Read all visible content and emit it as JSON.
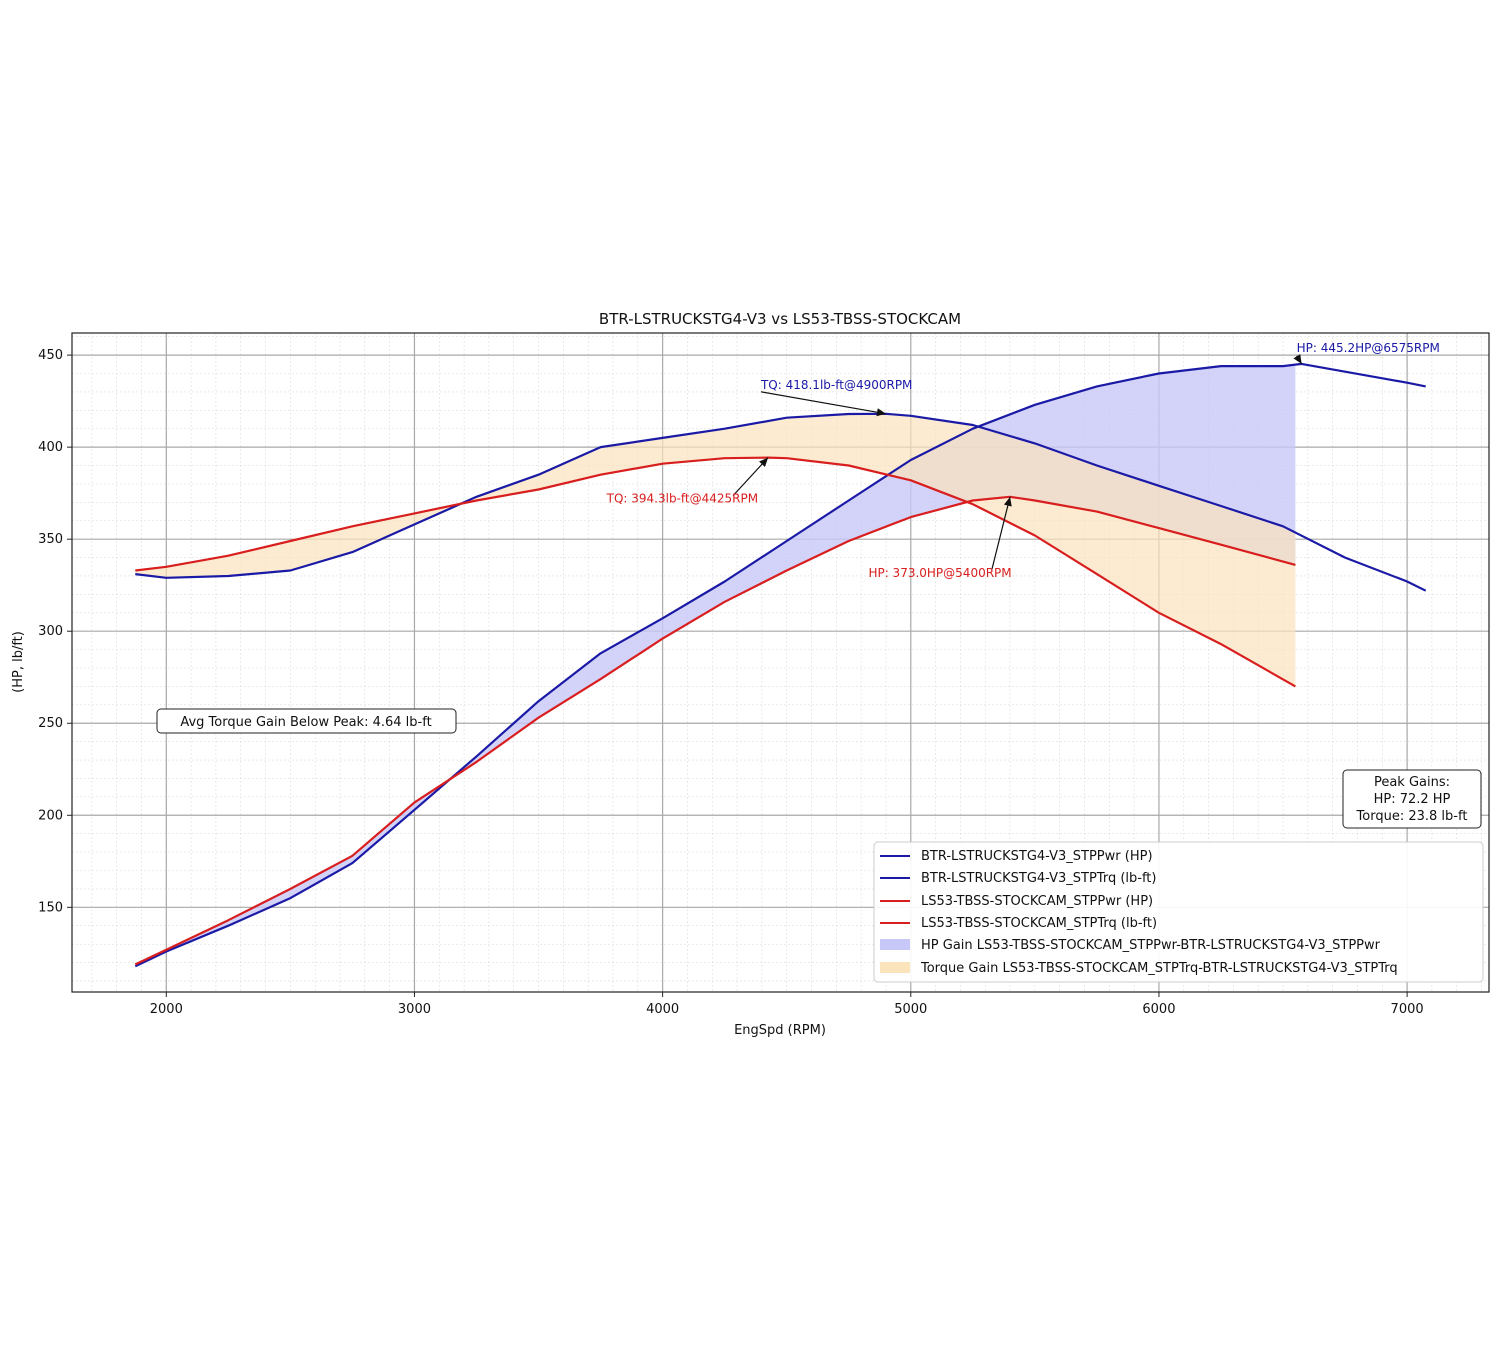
{
  "chart_data": {
    "type": "line",
    "title": "BTR-LSTRUCKSTG4-V3 vs LS53-TBSS-STOCKCAM",
    "xlabel": "EngSpd (RPM)",
    "ylabel": "(HP, lb/ft)",
    "xlim": [
      1620,
      7330
    ],
    "ylim": [
      104,
      462
    ],
    "xticks": [
      2000,
      3000,
      4000,
      5000,
      6000,
      7000
    ],
    "yticks": [
      150,
      200,
      250,
      300,
      350,
      400,
      450
    ],
    "grid": true,
    "legend_position": "lower-right",
    "series": [
      {
        "name": "BTR-LSTRUCKSTG4-V3_STPPwr (HP)",
        "color": "#1a1aa6",
        "x": [
          1875,
          2000,
          2250,
          2500,
          2750,
          3000,
          3250,
          3500,
          3750,
          4000,
          4250,
          4500,
          4750,
          5000,
          5250,
          5500,
          5750,
          6000,
          6250,
          6500,
          6575,
          6750,
          7000,
          7075
        ],
        "y": [
          118,
          126,
          140,
          155,
          174,
          203,
          232,
          262,
          288,
          307,
          327,
          349,
          371,
          393,
          410,
          423,
          433,
          440,
          444,
          444,
          445.2,
          441,
          435,
          433
        ]
      },
      {
        "name": "BTR-LSTRUCKSTG4-V3_STPTrq (lb-ft)",
        "color": "#1a1aa6",
        "x": [
          1875,
          2000,
          2250,
          2500,
          2750,
          3000,
          3250,
          3500,
          3750,
          4000,
          4250,
          4500,
          4750,
          4900,
          5000,
          5250,
          5500,
          5750,
          6000,
          6250,
          6500,
          6750,
          7000,
          7075
        ],
        "y": [
          331,
          329,
          330,
          333,
          343,
          358,
          373,
          385,
          400,
          405,
          410,
          416,
          418,
          418.1,
          417,
          412,
          402,
          390,
          379,
          368,
          357,
          340,
          327,
          322
        ]
      },
      {
        "name": "LS53-TBSS-STOCKCAM_STPPwr (HP)",
        "color": "#d81e1e",
        "x": [
          1875,
          2000,
          2250,
          2500,
          2750,
          3000,
          3250,
          3500,
          3750,
          4000,
          4250,
          4500,
          4750,
          5000,
          5250,
          5400,
          5500,
          5750,
          6000,
          6250,
          6550
        ],
        "y": [
          119,
          127,
          143,
          160,
          178,
          207,
          229,
          253,
          274,
          296,
          316,
          333,
          349,
          362,
          371,
          373,
          371,
          365,
          356,
          347,
          336
        ]
      },
      {
        "name": "LS53-TBSS-STOCKCAM_STPTrq (lb-ft)",
        "color": "#d81e1e",
        "x": [
          1875,
          2000,
          2250,
          2500,
          2750,
          3000,
          3250,
          3500,
          3750,
          4000,
          4250,
          4425,
          4500,
          4750,
          5000,
          5250,
          5500,
          5750,
          6000,
          6250,
          6550
        ],
        "y": [
          333,
          335,
          341,
          349,
          357,
          364,
          371,
          377,
          385,
          391,
          394,
          394.3,
          394,
          390,
          382,
          369,
          352,
          331,
          310,
          293,
          270
        ]
      }
    ],
    "fills": [
      {
        "name": "HP Gain LS53-TBSS-STOCKCAM_STPPwr-BTR-LSTRUCKSTG4-V3_STPPwr",
        "color": "#c8c8f8",
        "upper_series": 0,
        "lower_series": 2,
        "x_range": [
          1875,
          6550
        ]
      },
      {
        "name": "Torque Gain LS53-TBSS-STOCKCAM_STPTrq-BTR-LSTRUCKSTG4-V3_STPTrq",
        "color": "#fbe3bc",
        "upper_series": 1,
        "lower_series": 3,
        "x_range": [
          1875,
          6550
        ]
      }
    ],
    "annotations": [
      {
        "text": "TQ: 418.1lb-ft@4900RPM",
        "color": "#1a1aa6",
        "x": 4900,
        "y": 418.1
      },
      {
        "text": "TQ: 394.3lb-ft@4425RPM",
        "color": "#d81e1e",
        "x": 4425,
        "y": 394.3
      },
      {
        "text": "HP: 445.2HP@6575RPM",
        "color": "#1a1aa6",
        "x": 6575,
        "y": 445.2
      },
      {
        "text": "HP: 373.0HP@5400RPM",
        "color": "#d81e1e",
        "x": 5400,
        "y": 373.0
      }
    ],
    "avg_box": "Avg Torque Gain Below Peak: 4.64 lb-ft",
    "peak_box": [
      "Peak Gains:",
      "HP: 72.2 HP",
      "Torque: 23.8 lb-ft"
    ]
  }
}
